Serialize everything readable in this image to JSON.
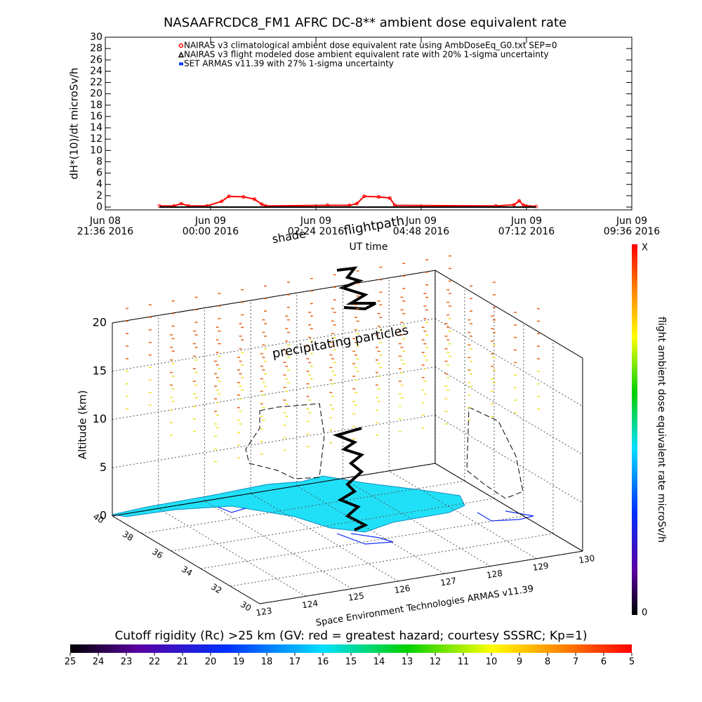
{
  "chart_data": [
    {
      "type": "line",
      "title": "NASAAFRCDC8_FM1 AFRC DC-8** ambient dose equivalent rate",
      "y_label": "dH*(10)/dt microSv/h",
      "x_label": "UT time",
      "xlim": [
        "2016-06-08 21:36",
        "2016-06-09 09:36"
      ],
      "xticks": [
        {
          "value": "2016-06-08 21:36",
          "label": [
            "Jun 08",
            "21:36 2016"
          ]
        },
        {
          "value": "2016-06-09 00:00",
          "label": [
            "Jun 09",
            "00:00 2016"
          ]
        },
        {
          "value": "2016-06-09 02:24",
          "label": [
            "Jun 09",
            "02:24 2016"
          ]
        },
        {
          "value": "2016-06-09 04:48",
          "label": [
            "Jun 09",
            "04:48 2016"
          ]
        },
        {
          "value": "2016-06-09 07:12",
          "label": [
            "Jun 09",
            "07:12 2016"
          ]
        },
        {
          "value": "2016-06-09 09:36",
          "label": [
            "Jun 09",
            "09:36 2016"
          ]
        }
      ],
      "ylim": [
        -0.5,
        30
      ],
      "yticks": [
        0,
        2,
        4,
        6,
        8,
        10,
        12,
        14,
        16,
        18,
        20,
        22,
        24,
        26,
        28,
        30
      ],
      "series": [
        {
          "name": "NAIRAS v3 climatological ambient dose equivalent rate using AmbDoseEq_G0.txt SEP=0",
          "color": "#ff0000",
          "marker": "circle",
          "x": [
            "2016-06-08 22:50",
            "2016-06-08 23:10",
            "2016-06-08 23:20",
            "2016-06-08 23:30",
            "2016-06-08 23:55",
            "2016-06-09 00:15",
            "2016-06-09 00:25",
            "2016-06-09 00:45",
            "2016-06-09 01:00",
            "2016-06-09 01:10",
            "2016-06-09 01:15",
            "2016-06-09 02:40",
            "2016-06-09 03:10",
            "2016-06-09 03:20",
            "2016-06-09 03:30",
            "2016-06-09 03:50",
            "2016-06-09 04:05",
            "2016-06-09 04:12",
            "2016-06-09 06:30",
            "2016-06-09 06:55",
            "2016-06-09 07:02",
            "2016-06-09 07:08",
            "2016-06-09 07:25"
          ],
          "values": [
            0.2,
            0.2,
            0.6,
            0.2,
            0.2,
            1.0,
            1.9,
            1.8,
            1.4,
            0.5,
            0.2,
            0.3,
            0.3,
            0.6,
            1.9,
            1.8,
            1.6,
            0.3,
            0.2,
            0.4,
            1.1,
            0.3,
            0.1
          ]
        },
        {
          "name": "NAIRAS v3 flight modeled dose ambient equivalent rate with 20% 1-sigma uncertainty",
          "color": "#000000",
          "marker": "triangle",
          "x": [
            "2016-06-08 22:50",
            "2016-06-09 01:00",
            "2016-06-09 03:00",
            "2016-06-09 05:00",
            "2016-06-09 07:25"
          ],
          "values": [
            0,
            0,
            0,
            0,
            0
          ]
        },
        {
          "name": "SET ARMAS v11.39 with 27% 1-sigma uncertainty",
          "color": "#1040ff",
          "marker": "square",
          "x": [],
          "values": []
        }
      ]
    },
    {
      "type": "surface3d",
      "z_label": "Altitude (km)",
      "zlim": [
        0,
        20
      ],
      "zticks": [
        0,
        5,
        10,
        15,
        20
      ],
      "ylim": [
        30,
        40
      ],
      "yticks": [
        30,
        32,
        34,
        36,
        38,
        40
      ],
      "xlim": [
        123,
        130
      ],
      "xticks": [
        123,
        124,
        125,
        126,
        127,
        128,
        129,
        130
      ],
      "annotations": [
        "shade",
        "flightpath",
        "precipitating particles"
      ],
      "credit": "Space Environment Technologies ARMAS v11.39"
    },
    {
      "type": "colorbar-vertical",
      "label": "flight ambient dose equivalent rate microSv/h",
      "end_labels": [
        "0",
        "X"
      ]
    },
    {
      "type": "colorbar-horizontal",
      "title": "Cutoff rigidity (Rc) >25 km (GV: red = greatest hazard; courtesy SSSRC; Kp=1)",
      "lim": [
        25,
        5
      ],
      "ticks": [
        25,
        24,
        23,
        22,
        21,
        20,
        19,
        18,
        17,
        16,
        15,
        14,
        13,
        12,
        11,
        10,
        9,
        8,
        7,
        6,
        5
      ]
    }
  ]
}
